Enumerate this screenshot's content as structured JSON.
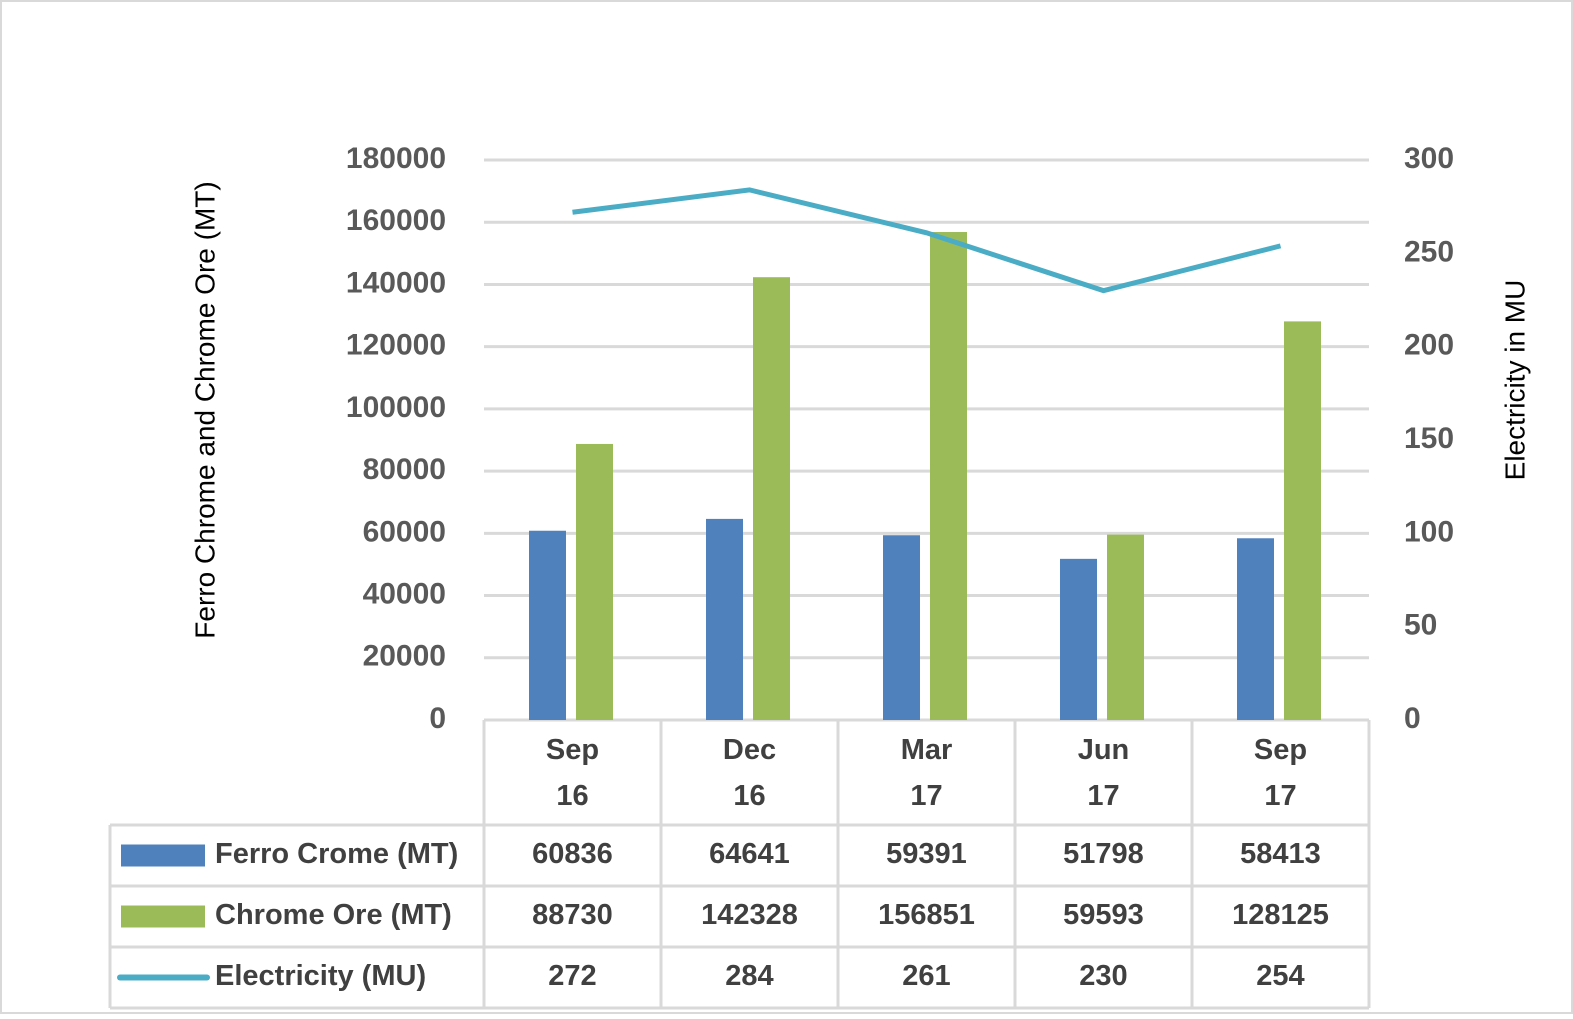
{
  "chart_data": {
    "type": "bar",
    "y_label": "Ferro Chrome and Chrome Ore (MT)",
    "y2_label": "Electricity in MU",
    "categories": [
      "Sep 16",
      "Dec 16",
      "Mar 17",
      "Jun 17",
      "Sep 17"
    ],
    "series": [
      {
        "name": "Ferro Crome (MT)",
        "color": "#4f81bd",
        "type": "bar",
        "values": [
          60836,
          64641,
          59391,
          51798,
          58413
        ]
      },
      {
        "name": "Chrome Ore (MT)",
        "color": "#9bbb59",
        "type": "bar",
        "values": [
          88730,
          142328,
          156851,
          59593,
          128125
        ]
      },
      {
        "name": "Electricity (MU)",
        "color": "#4bacc6",
        "type": "line",
        "axis": "y2",
        "values": [
          272,
          284,
          261,
          230,
          254
        ]
      }
    ],
    "ylim": [
      0,
      180000
    ],
    "yticks": [
      0,
      20000,
      40000,
      60000,
      80000,
      100000,
      120000,
      140000,
      160000,
      180000
    ],
    "y2lim": [
      0,
      300
    ],
    "y2ticks": [
      0,
      50,
      100,
      150,
      200,
      250,
      300
    ],
    "grid": true
  }
}
